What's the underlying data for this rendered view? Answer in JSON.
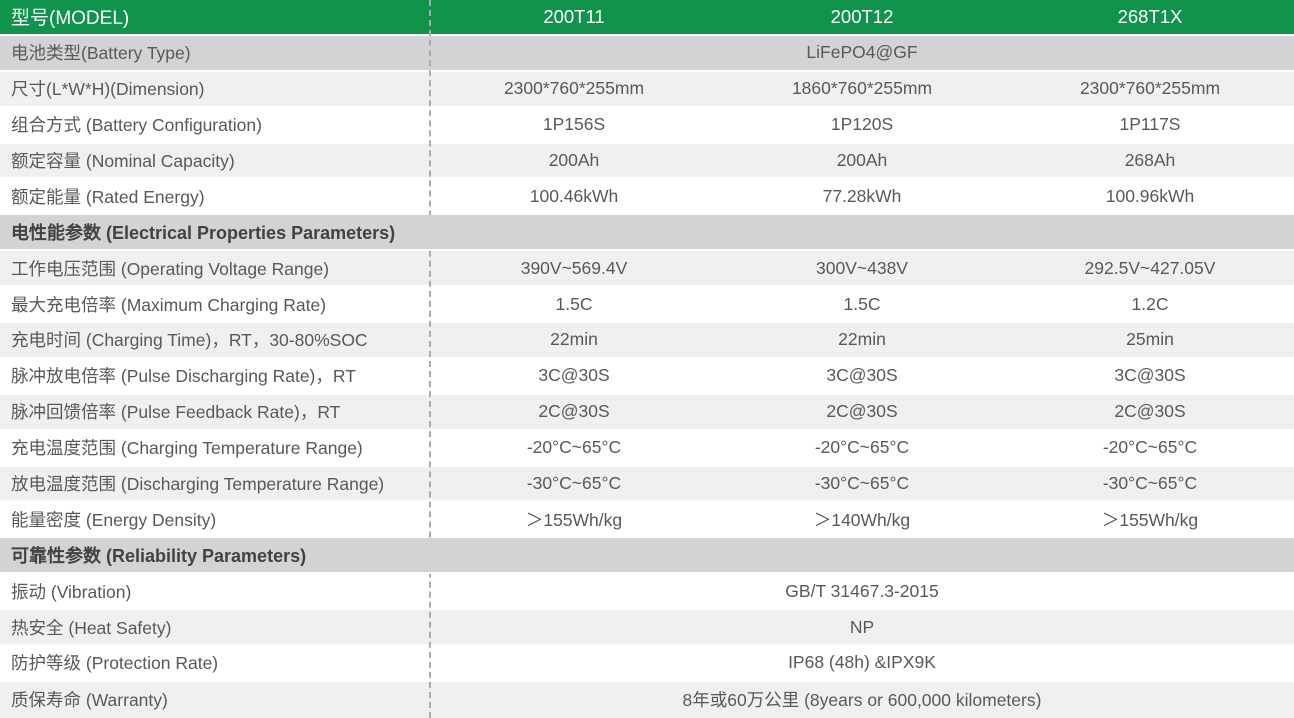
{
  "colors": {
    "header_green": "#10934a",
    "section_gray": "#d1d3d4",
    "row_alt": "#eef0f1",
    "row_white": "#ffffff",
    "text": "#58595b",
    "section_text": "#414244",
    "header_text": "#ffffff",
    "dash": "#a9abac"
  },
  "table": {
    "model_row": {
      "label": "型号(MODEL)",
      "models": [
        "200T11",
        "200T12",
        "268T1X"
      ]
    },
    "rows": [
      {
        "kind": "span",
        "shade": "gray",
        "label": "电池类型(Battery Type)",
        "value": "LiFePO4@GF"
      },
      {
        "kind": "cells",
        "shade": "alt",
        "label": "尺寸(L*W*H)(Dimension)",
        "values": [
          "2300*760*255mm",
          "1860*760*255mm",
          "2300*760*255mm"
        ]
      },
      {
        "kind": "cells",
        "shade": "white",
        "label": "组合方式 (Battery Configuration)",
        "values": [
          "1P156S",
          "1P120S",
          "1P117S"
        ]
      },
      {
        "kind": "cells",
        "shade": "alt",
        "label": "额定容量 (Nominal Capacity)",
        "values": [
          "200Ah",
          "200Ah",
          "268Ah"
        ]
      },
      {
        "kind": "cells",
        "shade": "white",
        "label": "额定能量 (Rated Energy)",
        "values": [
          "100.46kWh",
          "77.28kWh",
          "100.96kWh"
        ]
      },
      {
        "kind": "section",
        "label": "电性能参数 (Electrical Properties Parameters)"
      },
      {
        "kind": "cells",
        "shade": "alt",
        "label": "工作电压范围 (Operating Voltage Range)",
        "values": [
          "390V~569.4V",
          "300V~438V",
          "292.5V~427.05V"
        ]
      },
      {
        "kind": "cells",
        "shade": "white",
        "label": "最大充电倍率 (Maximum Charging Rate)",
        "values": [
          "1.5C",
          "1.5C",
          "1.2C"
        ]
      },
      {
        "kind": "cells",
        "shade": "alt",
        "label": "充电时间 (Charging Time)，RT，30-80%SOC",
        "values": [
          "22min",
          "22min",
          "25min"
        ]
      },
      {
        "kind": "cells",
        "shade": "white",
        "label": "脉冲放电倍率 (Pulse Discharging Rate)，RT",
        "values": [
          "3C@30S",
          "3C@30S",
          "3C@30S"
        ]
      },
      {
        "kind": "cells",
        "shade": "alt",
        "label": "脉冲回馈倍率 (Pulse Feedback Rate)，RT",
        "values": [
          "2C@30S",
          "2C@30S",
          "2C@30S"
        ]
      },
      {
        "kind": "cells",
        "shade": "white",
        "label": "充电温度范围 (Charging Temperature Range)",
        "values": [
          "-20°C~65°C",
          "-20°C~65°C",
          "-20°C~65°C"
        ]
      },
      {
        "kind": "cells",
        "shade": "alt",
        "label": "放电温度范围 (Discharging Temperature Range)",
        "values": [
          "-30°C~65°C",
          "-30°C~65°C",
          "-30°C~65°C"
        ]
      },
      {
        "kind": "cells",
        "shade": "white",
        "label": "能量密度 (Energy Density)",
        "values": [
          "＞155Wh/kg",
          "＞140Wh/kg",
          "＞155Wh/kg"
        ]
      },
      {
        "kind": "section",
        "label": "可靠性参数 (Reliability Parameters)"
      },
      {
        "kind": "span",
        "shade": "white",
        "label": "振动 (Vibration)",
        "value": "GB/T 31467.3-2015"
      },
      {
        "kind": "span",
        "shade": "alt",
        "label": "热安全 (Heat Safety)",
        "value": "NP"
      },
      {
        "kind": "span",
        "shade": "white",
        "label": "防护等级 (Protection Rate)",
        "value": "IP68 (48h) &IPX9K"
      },
      {
        "kind": "span",
        "shade": "alt",
        "label": "质保寿命 (Warranty)",
        "value": "8年或60万公里 (8years  or 600,000 kilometers)"
      }
    ]
  }
}
